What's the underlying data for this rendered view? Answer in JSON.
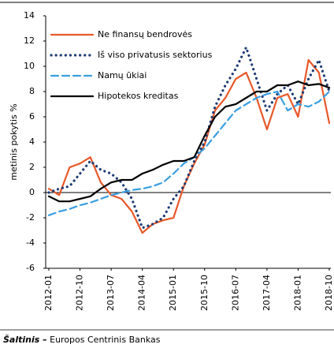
{
  "chart_data": {
    "type": "line",
    "ylabel": "metinis pokytis %",
    "categories": [
      "2012-01",
      null,
      null,
      "2012-10",
      null,
      null,
      "2013-07",
      null,
      null,
      "2014-04",
      null,
      null,
      "2015-01",
      null,
      null,
      "2015-10",
      null,
      null,
      "2016-07",
      null,
      null,
      "2017-04",
      null,
      null,
      "2018-01",
      null,
      null,
      "2018-10"
    ],
    "series": [
      {
        "name": "Ne finansų bendrovės",
        "color": "#e8582a",
        "style": "solid",
        "values": [
          0.3,
          -0.2,
          2.0,
          2.3,
          2.8,
          0.8,
          -0.2,
          -0.5,
          -1.5,
          -3.2,
          -2.5,
          -2.2,
          -2.0,
          0.5,
          2.3,
          3.8,
          6.5,
          7.5,
          9.0,
          9.5,
          7.5,
          5.0,
          7.5,
          7.8,
          6.0,
          10.5,
          9.5,
          5.5
        ]
      },
      {
        "name": "Iš viso privatusis sektorius",
        "color": "#1f3b73",
        "style": "dotted",
        "values": [
          0.0,
          0.3,
          0.5,
          1.5,
          2.5,
          1.8,
          1.5,
          0.8,
          -0.5,
          -2.8,
          -2.5,
          -2.0,
          -0.5,
          0.5,
          2.5,
          4.0,
          6.8,
          8.5,
          9.8,
          11.5,
          9.0,
          6.5,
          7.8,
          8.5,
          7.0,
          9.0,
          10.5,
          8.0
        ]
      },
      {
        "name": "Namų ūkiai",
        "color": "#3a9ee0",
        "style": "dashed",
        "values": [
          -1.8,
          -1.5,
          -1.3,
          -1.0,
          -0.8,
          -0.5,
          -0.2,
          0.0,
          0.2,
          0.3,
          0.5,
          0.8,
          1.5,
          2.3,
          2.8,
          3.5,
          4.5,
          5.5,
          6.5,
          7.0,
          7.5,
          7.8,
          8.0,
          6.5,
          7.0,
          6.8,
          7.2,
          8.0
        ]
      },
      {
        "name": "Hipotekos kreditas",
        "color": "#000000",
        "style": "solid",
        "values": [
          -0.3,
          -0.7,
          -0.7,
          -0.5,
          -0.3,
          0.3,
          0.8,
          1.0,
          1.0,
          1.5,
          1.8,
          2.2,
          2.5,
          2.5,
          2.8,
          4.5,
          6.0,
          6.8,
          7.0,
          7.5,
          8.0,
          8.0,
          8.5,
          8.5,
          8.8,
          8.5,
          8.6,
          8.3
        ]
      }
    ],
    "ylim": [
      -6,
      14
    ],
    "yticks": [
      -6,
      -4,
      -2,
      0,
      2,
      4,
      6,
      8,
      10,
      12,
      14
    ],
    "legend": "upper left",
    "source": {
      "label": "Šaltinis –",
      "text": "Europos Centrinis Bankas"
    }
  }
}
